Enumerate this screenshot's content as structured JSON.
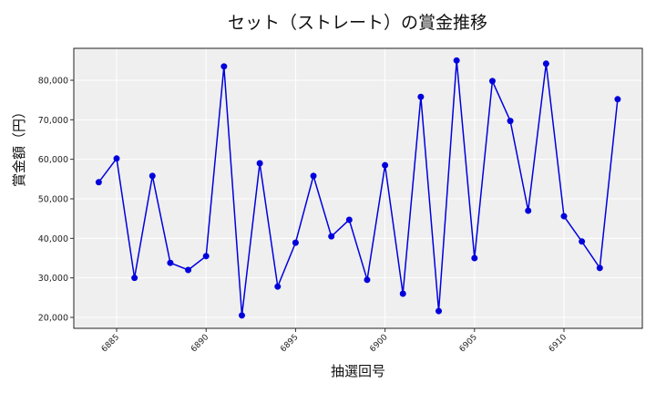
{
  "chart_data": {
    "type": "line",
    "title": "セット（ストレート）の賞金推移",
    "xlabel": "抽選回号",
    "ylabel": "賞金額（円）",
    "x": [
      6884,
      6885,
      6886,
      6887,
      6888,
      6889,
      6890,
      6891,
      6892,
      6893,
      6894,
      6895,
      6896,
      6897,
      6898,
      6899,
      6900,
      6901,
      6902,
      6903,
      6904,
      6905,
      6906,
      6907,
      6908,
      6909,
      6910,
      6911,
      6912,
      6913
    ],
    "series": [
      {
        "name": "賞金額",
        "color": "#0000dd",
        "marker": "circle",
        "values": [
          54200,
          60200,
          30000,
          55800,
          33800,
          32000,
          35500,
          83500,
          20500,
          59000,
          27800,
          38900,
          55800,
          40500,
          44700,
          29500,
          58500,
          26000,
          75800,
          21600,
          85000,
          35000,
          79800,
          69700,
          47000,
          84200,
          45600,
          39200,
          32500,
          75200
        ]
      }
    ],
    "xticks": [
      6885,
      6890,
      6895,
      6900,
      6905,
      6910
    ],
    "yticks": [
      20000,
      30000,
      40000,
      50000,
      60000,
      70000,
      80000
    ],
    "ytick_labels": [
      "20,000",
      "30,000",
      "40,000",
      "50,000",
      "60,000",
      "70,000",
      "80,000"
    ],
    "xlim": [
      6883.2,
      6913.8
    ],
    "ylim": [
      17400,
      90000
    ],
    "grid": true,
    "legend": null,
    "background": "#efefef"
  }
}
